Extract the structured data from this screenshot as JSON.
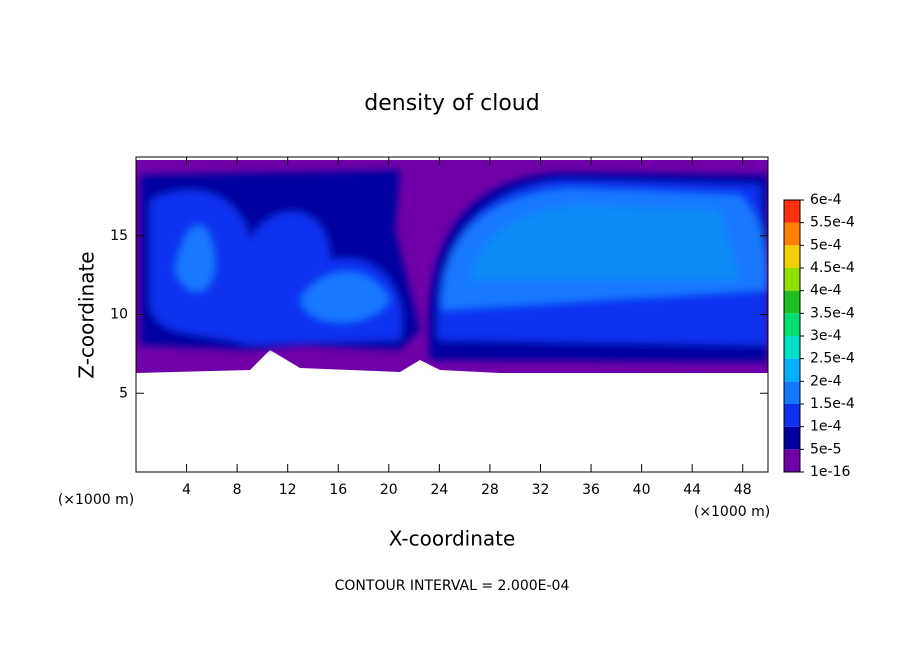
{
  "chart_data": {
    "type": "contour",
    "title": "density of cloud",
    "x_label": "X-coordinate",
    "y_label": "Z-coordinate",
    "x_unit": "(×1000 m)",
    "y_unit": "(×1000 m)",
    "xlim": [
      0,
      50
    ],
    "ylim": [
      0,
      20
    ],
    "xticks": [
      4,
      8,
      12,
      16,
      20,
      24,
      28,
      32,
      36,
      40,
      44,
      48
    ],
    "yticks": [
      5,
      10,
      15
    ],
    "footer": "CONTOUR INTERVAL = 2.000E-04",
    "colorbar": {
      "lim": [
        0,
        0.0006
      ],
      "ticks": [
        {
          "value": 1e-16,
          "label": "1e-16"
        },
        {
          "value": 5e-05,
          "label": "5e-5"
        },
        {
          "value": 0.0001,
          "label": "1e-4"
        },
        {
          "value": 0.00015,
          "label": "1.5e-4"
        },
        {
          "value": 0.0002,
          "label": "2e-4"
        },
        {
          "value": 0.00025,
          "label": "2.5e-4"
        },
        {
          "value": 0.0003,
          "label": "3e-4"
        },
        {
          "value": 0.00035,
          "label": "3.5e-4"
        },
        {
          "value": 0.0004,
          "label": "4e-4"
        },
        {
          "value": 0.00045,
          "label": "4.5e-4"
        },
        {
          "value": 0.0005,
          "label": "5e-4"
        },
        {
          "value": 0.00055,
          "label": "5.5e-4"
        },
        {
          "value": 0.0006,
          "label": "6e-4"
        }
      ],
      "colors": [
        "#7000a8",
        "#0000a0",
        "#1030f0",
        "#1478ff",
        "#00b0ff",
        "#00e0c8",
        "#00e070",
        "#20c020",
        "#90e000",
        "#f0d000",
        "#ff8000",
        "#ff3010",
        "#ff9090"
      ]
    }
  }
}
